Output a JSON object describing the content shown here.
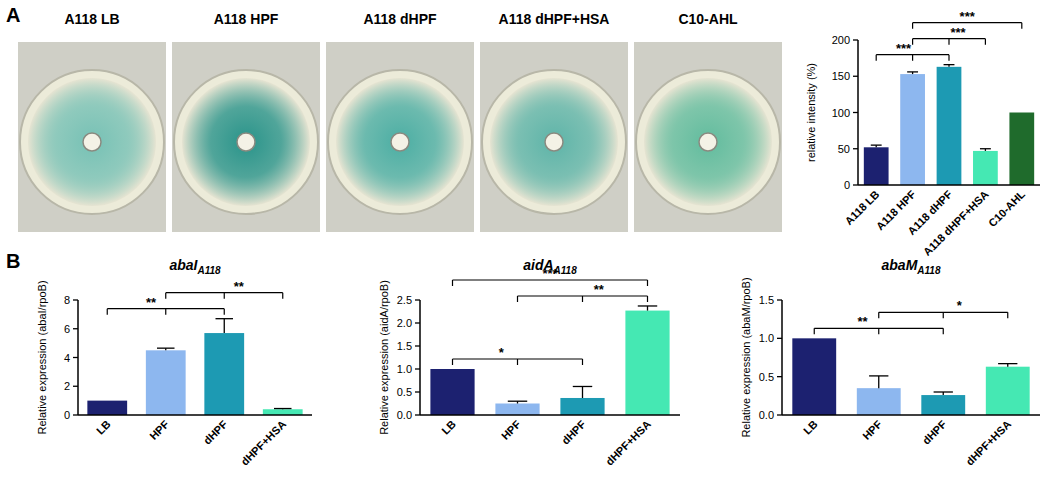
{
  "panel_labels": [
    "A",
    "B"
  ],
  "images": [
    {
      "label": "A118 LB"
    },
    {
      "label": "A118 HPF"
    },
    {
      "label": "A118 dHPF"
    },
    {
      "label": "A118 dHPF+HSA"
    },
    {
      "label": "C10-AHL"
    }
  ],
  "chart_data": [
    {
      "type": "bar",
      "ylabel": "relative intensity (%)",
      "categories": [
        "A118 LB",
        "A118 HPF",
        "A118 dHPF",
        "A118 dHPF+HSA",
        "C10-AHL"
      ],
      "values": [
        52,
        153,
        163,
        47,
        100
      ],
      "errors": [
        3,
        3,
        3,
        3,
        null
      ],
      "colors": [
        "#1c2170",
        "#8db7ef",
        "#1d9ab3",
        "#45e8b3",
        "#1f6b2c"
      ],
      "ylim": [
        0,
        200
      ],
      "yticks": [
        0,
        50,
        100,
        150,
        200
      ],
      "annotations": [
        {
          "from": [
            0
          ],
          "to": [
            1,
            2
          ],
          "label": "***"
        },
        {
          "from": [
            1,
            2
          ],
          "to": [
            3
          ],
          "label": "***"
        },
        {
          "from": [
            1
          ],
          "to": [
            4
          ],
          "label": "***"
        }
      ]
    },
    {
      "type": "bar",
      "title": "abaI A118",
      "ylabel": "Relative expression (abaI/rpoB)",
      "categories": [
        "LB",
        "HPF",
        "dHPF",
        "dHPF+HSA"
      ],
      "values": [
        1.0,
        4.5,
        5.7,
        0.4
      ],
      "errors": [
        null,
        0.15,
        1.0,
        0.05
      ],
      "colors": [
        "#1c2170",
        "#8db7ef",
        "#1d9ab3",
        "#45e8b3"
      ],
      "ylim": [
        0,
        8
      ],
      "yticks": [
        0,
        2,
        4,
        6,
        8
      ],
      "annotations": [
        {
          "from": [
            0
          ],
          "to": [
            1,
            2
          ],
          "label": "**"
        },
        {
          "from": [
            1,
            2
          ],
          "to": [
            3
          ],
          "label": "**"
        }
      ]
    },
    {
      "type": "bar",
      "title": "aidA A118",
      "ylabel": "Relative expression (aidA/rpoB)",
      "categories": [
        "LB",
        "HPF",
        "dHPF",
        "dHPF+HSA"
      ],
      "values": [
        1.0,
        0.25,
        0.37,
        2.27
      ],
      "errors": [
        null,
        0.05,
        0.25,
        0.1
      ],
      "colors": [
        "#1c2170",
        "#8db7ef",
        "#1d9ab3",
        "#45e8b3"
      ],
      "ylim": [
        0,
        2.5
      ],
      "yticks": [
        {
          "value": 0,
          "label": "0.0"
        },
        0.5,
        {
          "value": 1,
          "label": "1.0"
        },
        1.5,
        {
          "value": 2,
          "label": "2.0"
        },
        2.5
      ],
      "annotations": [
        {
          "from": [
            0
          ],
          "to": [
            1,
            2
          ],
          "label": "*"
        },
        {
          "from": [
            1,
            2
          ],
          "to": [
            3
          ],
          "label": "**"
        },
        {
          "from": [
            0
          ],
          "to": [
            3
          ],
          "label": "***"
        }
      ]
    },
    {
      "type": "bar",
      "title": "abaM A118",
      "ylabel": "Relative expression (abaM/rpoB)",
      "categories": [
        "LB",
        "HPF",
        "dHPF",
        "dHPF+HSA"
      ],
      "values": [
        1.0,
        0.35,
        0.26,
        0.63
      ],
      "errors": [
        null,
        0.16,
        0.04,
        0.04
      ],
      "colors": [
        "#1c2170",
        "#8db7ef",
        "#1d9ab3",
        "#45e8b3"
      ],
      "ylim": [
        0,
        1.5
      ],
      "yticks": [
        {
          "value": 0,
          "label": "0.0"
        },
        0.5,
        {
          "value": 1,
          "label": "1.0"
        },
        1.5
      ],
      "annotations": [
        {
          "from": [
            0
          ],
          "to": [
            1,
            2
          ],
          "label": "**"
        },
        {
          "from": [
            1,
            2
          ],
          "to": [
            3
          ],
          "label": "*"
        }
      ]
    }
  ]
}
